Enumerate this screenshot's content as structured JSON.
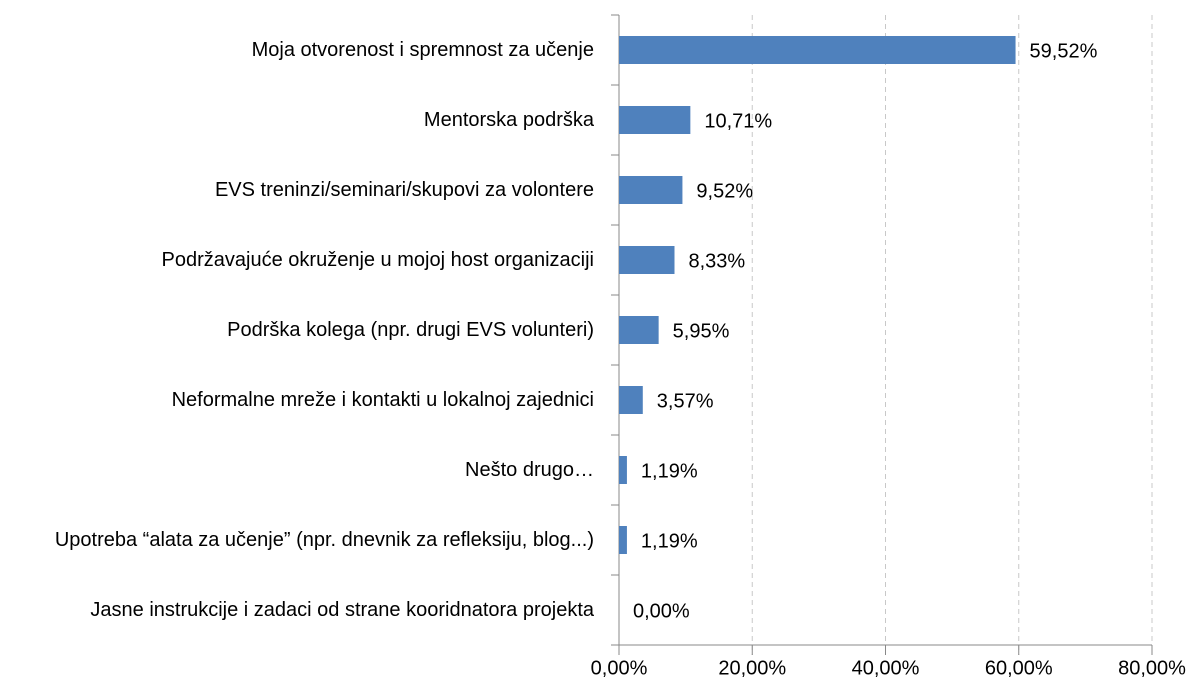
{
  "chart_data": {
    "type": "bar",
    "orientation": "horizontal",
    "categories": [
      "Moja otvorenost i spremnost za učenje",
      "Mentorska podrška",
      "EVS treninzi/seminari/skupovi za volontere",
      "Podržavajuće okruženje u mojoj host organizaciji",
      "Podrška kolega (npr. drugi EVS volunteri)",
      "Neformalne mreže i kontakti u lokalnoj zajednici",
      "Nešto drugo…",
      "Upotreba “alata za učenje” (npr. dnevnik za refleksiju, blog...)",
      "Jasne instrukcije i zadaci od strane kooridnatora projekta"
    ],
    "values": [
      59.52,
      10.71,
      9.52,
      8.33,
      5.95,
      3.57,
      1.19,
      1.19,
      0
    ],
    "value_labels": [
      "59,52%",
      "10,71%",
      "9,52%",
      "8,33%",
      "5,95%",
      "3,57%",
      "1,19%",
      "1,19%",
      "0,00%"
    ],
    "color": "#4f81bd",
    "xlim": [
      0,
      80
    ],
    "xticks": [
      {
        "value": 0,
        "label": "0,00%"
      },
      {
        "value": 20,
        "label": "20,00%"
      },
      {
        "value": 40,
        "label": "40,00%"
      },
      {
        "value": 60,
        "label": "60,00%"
      },
      {
        "value": 80,
        "label": "80,00%"
      }
    ],
    "grid": true
  }
}
